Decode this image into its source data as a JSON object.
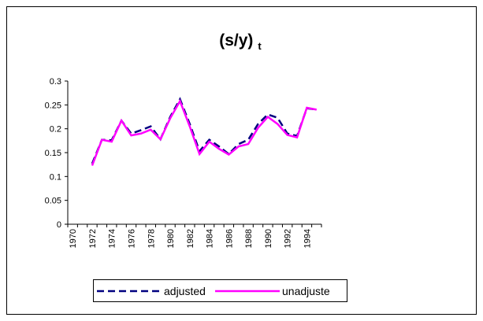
{
  "chart_data": {
    "type": "line",
    "title": "(s/y)",
    "title_subscript": "t",
    "categories": [
      "1970",
      null,
      "1972",
      null,
      "1974",
      null,
      "1976",
      null,
      "1978",
      null,
      "1980",
      null,
      "1982",
      null,
      "1984",
      null,
      "1986",
      null,
      "1988",
      null,
      "1990",
      null,
      "1992",
      null,
      "1994",
      null
    ],
    "series": [
      {
        "name": "adjusted",
        "color": "#000080",
        "dash": true,
        "values": [
          null,
          null,
          0.127,
          0.177,
          0.176,
          0.217,
          0.19,
          0.197,
          0.205,
          0.178,
          0.225,
          0.262,
          0.21,
          0.153,
          0.177,
          0.163,
          0.147,
          0.168,
          0.177,
          0.21,
          0.23,
          0.223,
          0.19,
          0.185,
          0.243,
          0.24
        ]
      },
      {
        "name": "unadjuste",
        "color": "#ff00ff",
        "dash": false,
        "values": [
          null,
          null,
          0.123,
          0.177,
          0.173,
          0.217,
          0.186,
          0.19,
          0.198,
          0.178,
          0.222,
          0.258,
          0.205,
          0.147,
          0.173,
          0.158,
          0.146,
          0.163,
          0.168,
          0.202,
          0.225,
          0.21,
          0.187,
          0.182,
          0.244,
          0.24
        ]
      }
    ],
    "ylim": [
      0,
      0.3
    ],
    "yticks": [
      0,
      0.05,
      0.1,
      0.15,
      0.2,
      0.25,
      0.3
    ],
    "grid": false,
    "legend": "bottom"
  }
}
